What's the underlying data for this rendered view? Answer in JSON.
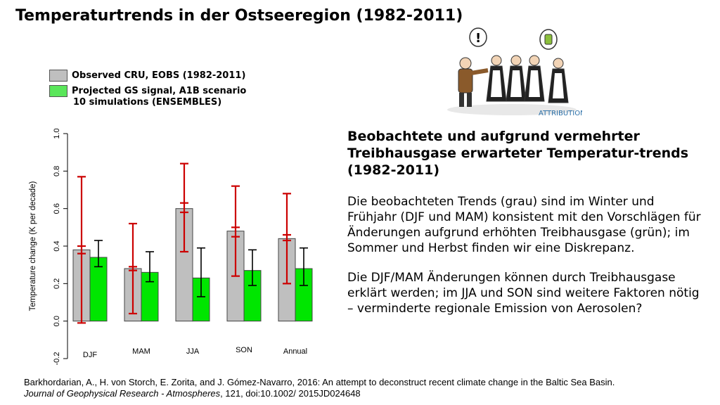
{
  "title": "Temperaturtrends in der Ostseeregion (1982-2011)",
  "legend": {
    "observed": {
      "label": "Observed CRU, EOBS (1982-2011)",
      "color": "#bfbfbf"
    },
    "projected": {
      "label": "Projected GS signal, A1B scenario",
      "sub": "10 simulations (ENSEMBLES)",
      "color": "#00e600"
    }
  },
  "cartoon": {
    "caption": "ATTRIBUTION",
    "icon": "detectives-attribution-illustration"
  },
  "chart_data": {
    "type": "bar",
    "ylabel": "Temperature change (K per decade)",
    "ylim": [
      -0.2,
      1.0
    ],
    "yticks": [
      -0.2,
      0.0,
      0.2,
      0.4,
      0.6,
      0.8,
      1.0
    ],
    "categories": [
      "DJF",
      "MAM",
      "JJA",
      "SON",
      "Annual"
    ],
    "series": [
      {
        "name": "Observed CRU, EOBS (1982-2011)",
        "color": "#bfbfbf",
        "values": [
          0.38,
          0.28,
          0.6,
          0.48,
          0.44
        ],
        "error_low": [
          -0.01,
          0.04,
          0.37,
          0.24,
          0.2
        ],
        "error_high": [
          0.77,
          0.52,
          0.84,
          0.72,
          0.68
        ],
        "marker_low": [
          0.36,
          0.27,
          0.58,
          0.45,
          0.43
        ],
        "marker_high": [
          0.4,
          0.29,
          0.63,
          0.5,
          0.46
        ],
        "error_color": "#cc0000"
      },
      {
        "name": "Projected GS signal, A1B scenario",
        "color": "#00e600",
        "values": [
          0.34,
          0.26,
          0.23,
          0.27,
          0.28
        ],
        "error_low": [
          0.29,
          0.21,
          0.13,
          0.19,
          0.19
        ],
        "error_high": [
          0.43,
          0.37,
          0.39,
          0.38,
          0.39
        ],
        "error_color": "#000000"
      }
    ]
  },
  "text": {
    "heading": "Beobachtete und aufgrund vermehrter Treibhausgase erwarteter Temperatur-trends (1982-2011)",
    "para1": "Die beobachteten Trends (grau) sind im Winter und Frühjahr (DJF und MAM) konsistent mit den Vorschlägen für Änderungen aufgrund erhöhten Treibhausgase (grün); im Sommer und Herbst finden wir eine Diskrepanz.",
    "para2": "Die DJF/MAM Änderungen können durch Treibhausgase erklärt werden; im JJA und SON sind weitere Faktoren nötig – verminderte regionale Emission von Aerosolen?"
  },
  "citation": {
    "line1": "Barkhordarian, A., H. von Storch, E. Zorita, and J. Gómez-Navarro, 2016: An attempt to deconstruct recent climate change in the Baltic Sea Basin.",
    "journal": "Journal of Geophysical Research - Atmospheres",
    "rest": ", 121, doi:10.1002/ 2015JD024648"
  }
}
